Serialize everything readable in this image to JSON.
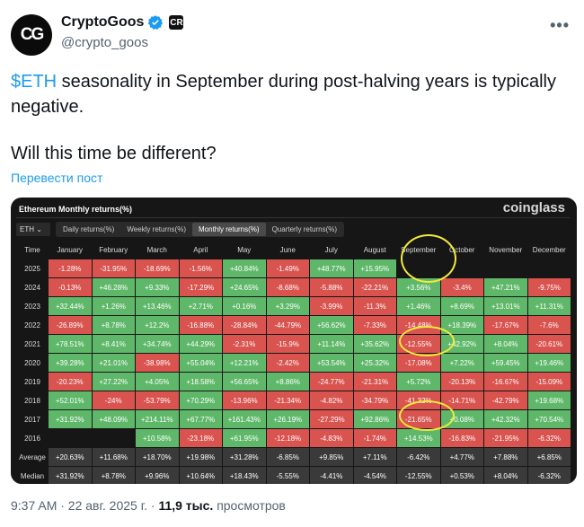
{
  "tweet": {
    "author": {
      "display_name": "CryptoGoos",
      "handle": "@crypto_goos",
      "avatar_text": "CG",
      "affiliate_badge": "CR",
      "verified_color": "#1d9bf0"
    },
    "cashtag": "$ETH",
    "text_line1_rest": " seasonality in September during post-halving years is typically negative.",
    "text_line2": "Will this time be different?",
    "translate_label": "Перевести пост",
    "timestamp": "9:37 AM · 22 авг. 2025 г. ·",
    "views_count": "11,9 тыс.",
    "views_label": "просмотров"
  },
  "chart_card": {
    "title": "Ethereum Monthly returns(%)",
    "brand": "coinglass",
    "coin_select": "ETH",
    "tabs": [
      {
        "label": "Daily returns(%)",
        "active": false
      },
      {
        "label": "Weekly returns(%)",
        "active": false
      },
      {
        "label": "Monthly returns(%)",
        "active": true
      },
      {
        "label": "Quarterly returns(%)",
        "active": false
      }
    ],
    "colors": {
      "positive": "#5fb86a",
      "negative": "#d9534f",
      "summary": "#3a3a3a",
      "annotation": "#f2ea3a"
    }
  },
  "chart_data": {
    "type": "table",
    "title": "Ethereum Monthly returns(%)",
    "columns": [
      "Time",
      "January",
      "February",
      "March",
      "April",
      "May",
      "June",
      "July",
      "August",
      "September",
      "October",
      "November",
      "December"
    ],
    "rows": [
      {
        "label": "2025",
        "values": [
          "-1.28%",
          "-31.95%",
          "-18.69%",
          "-1.56%",
          "+40.84%",
          "-1.49%",
          "+48.77%",
          "+15.95%",
          "",
          "",
          "",
          ""
        ]
      },
      {
        "label": "2024",
        "values": [
          "-0.13%",
          "+46.28%",
          "+9.33%",
          "-17.29%",
          "+24.65%",
          "-8.68%",
          "-5.88%",
          "-22.21%",
          "+3.56%",
          "-3.4%",
          "+47.21%",
          "-9.75%"
        ]
      },
      {
        "label": "2023",
        "values": [
          "+32.44%",
          "+1.26%",
          "+13.46%",
          "+2.71%",
          "+0.16%",
          "+3.29%",
          "-3.99%",
          "-11.3%",
          "+1.46%",
          "+8.69%",
          "+13.01%",
          "+11.31%"
        ]
      },
      {
        "label": "2022",
        "values": [
          "-26.89%",
          "+8.78%",
          "+12.2%",
          "-16.88%",
          "-28.84%",
          "-44.79%",
          "+56.62%",
          "-7.33%",
          "-14.48%",
          "+18.39%",
          "-17.67%",
          "-7.6%"
        ]
      },
      {
        "label": "2021",
        "values": [
          "+78.51%",
          "+8.41%",
          "+34.74%",
          "+44.29%",
          "-2.31%",
          "-15.9%",
          "+11.14%",
          "+35.62%",
          "-12.55%",
          "+42.92%",
          "+8.04%",
          "-20.61%"
        ]
      },
      {
        "label": "2020",
        "values": [
          "+39.28%",
          "+21.01%",
          "-38.98%",
          "+55.04%",
          "+12.21%",
          "-2.42%",
          "+53.54%",
          "+25.32%",
          "-17.08%",
          "+7.22%",
          "+59.45%",
          "+19.46%"
        ]
      },
      {
        "label": "2019",
        "values": [
          "-20.23%",
          "+27.22%",
          "+4.05%",
          "+18.58%",
          "+56.65%",
          "+8.86%",
          "-24.77%",
          "-21.31%",
          "+5.72%",
          "-20.13%",
          "-16.67%",
          "-15.09%"
        ]
      },
      {
        "label": "2018",
        "values": [
          "+52.01%",
          "-24%",
          "-53.79%",
          "+70.29%",
          "-13.96%",
          "-21.34%",
          "-4.82%",
          "-34.79%",
          "-41.32%",
          "-14.71%",
          "-42.79%",
          "+19.68%"
        ]
      },
      {
        "label": "2017",
        "values": [
          "+31.92%",
          "+48.09%",
          "+214.11%",
          "+67.77%",
          "+161.43%",
          "+26.19%",
          "-27.29%",
          "+92.86%",
          "-21.65%",
          "+0.08%",
          "+42.32%",
          "+70.54%"
        ]
      },
      {
        "label": "2016",
        "values": [
          "",
          "",
          "+10.58%",
          "-23.18%",
          "+61.95%",
          "-12.18%",
          "-4.83%",
          "-1.74%",
          "+14.53%",
          "-16.83%",
          "-21.95%",
          "-6.32%"
        ]
      }
    ],
    "summary_rows": [
      {
        "label": "Average",
        "values": [
          "+20.63%",
          "+11.68%",
          "+18.70%",
          "+19.98%",
          "+31.28%",
          "-6.85%",
          "+9.85%",
          "+7.11%",
          "-6.42%",
          "+4.77%",
          "+7.88%",
          "+6.85%"
        ]
      },
      {
        "label": "Median",
        "values": [
          "+31.92%",
          "+8.78%",
          "+9.96%",
          "+10.64%",
          "+18.43%",
          "-5.55%",
          "-4.41%",
          "-4.54%",
          "-12.55%",
          "+0.53%",
          "+8.04%",
          "-6.32%"
        ]
      }
    ],
    "highlighted": [
      "September",
      "2021 September",
      "2017 September"
    ]
  }
}
